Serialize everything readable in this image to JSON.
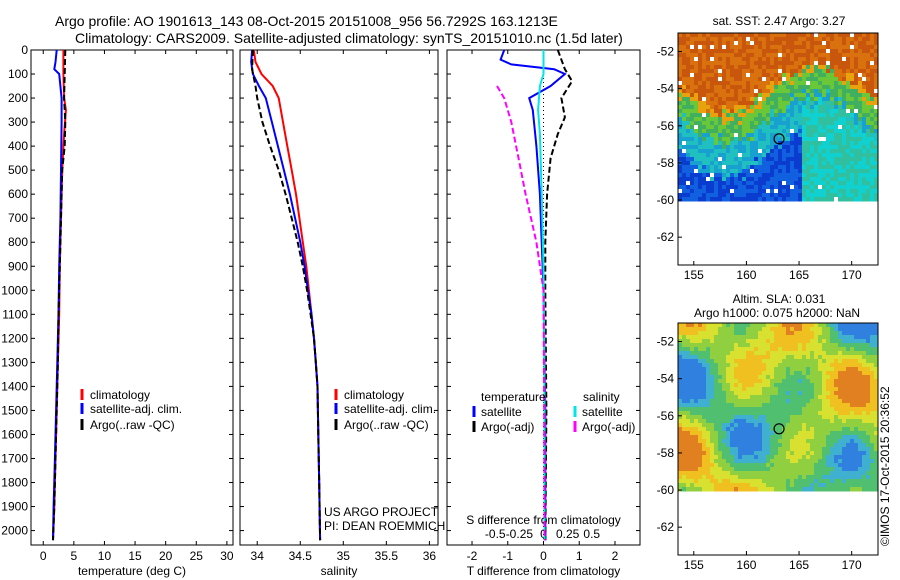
{
  "header": {
    "line1": "Argo profile: AO 1901613_143 08-Oct-2015 20151008_956 56.7292S 163.1213E",
    "line2": "Climatology: CARS2009. Satellite-adjusted climatology: synTS_20151010.nc (1.5d later)"
  },
  "colors": {
    "climatology": "#ff0000",
    "satellite": "#0000ff",
    "argo": "#000000",
    "satellite_salinity": "#00e5e5",
    "argo_salinity_adj": "#ff00ff"
  },
  "watermark": "©IMOS 17-Oct-2015 20:36:52",
  "chart_data": [
    {
      "type": "line",
      "xlabel": "temperature (deg C)",
      "ylabel": "",
      "xlim": [
        -2,
        31
      ],
      "ylim": [
        2060,
        0
      ],
      "x_ticks": [
        0,
        5,
        10,
        15,
        20,
        25,
        30
      ],
      "y_ticks": [
        0,
        100,
        200,
        300,
        400,
        500,
        600,
        700,
        800,
        900,
        1000,
        1100,
        1200,
        1300,
        1400,
        1500,
        1600,
        1700,
        1800,
        1900,
        2000
      ],
      "legend_position": "lower-middle",
      "series": [
        {
          "name": "climatology",
          "color": "#ff0000",
          "dash": false,
          "points": [
            [
              3.3,
              0
            ],
            [
              3.3,
              100
            ],
            [
              3.4,
              200
            ],
            [
              3.7,
              250
            ],
            [
              3.4,
              350
            ],
            [
              3.1,
              500
            ],
            [
              2.9,
              700
            ],
            [
              2.7,
              900
            ],
            [
              2.6,
              1100
            ],
            [
              2.4,
              1300
            ],
            [
              2.2,
              1500
            ],
            [
              2.0,
              1700
            ],
            [
              1.8,
              1900
            ],
            [
              1.6,
              2040
            ]
          ]
        },
        {
          "name": "satellite-adj. clim.",
          "color": "#0000ff",
          "dash": false,
          "points": [
            [
              2.2,
              0
            ],
            [
              2.0,
              50
            ],
            [
              1.8,
              80
            ],
            [
              2.6,
              100
            ],
            [
              3.0,
              200
            ],
            [
              3.0,
              300
            ],
            [
              2.9,
              500
            ],
            [
              2.8,
              700
            ],
            [
              2.6,
              900
            ],
            [
              2.5,
              1100
            ],
            [
              2.3,
              1300
            ],
            [
              2.1,
              1500
            ],
            [
              1.9,
              1700
            ],
            [
              1.7,
              1900
            ],
            [
              1.6,
              2040
            ]
          ]
        },
        {
          "name": "Argo(..raw -QC)",
          "color": "#000000",
          "dash": true,
          "points": [
            [
              3.6,
              0
            ],
            [
              3.5,
              100
            ],
            [
              3.4,
              200
            ],
            [
              3.6,
              300
            ],
            [
              3.5,
              400
            ],
            [
              3.1,
              500
            ],
            [
              2.9,
              700
            ],
            [
              2.7,
              900
            ],
            [
              2.5,
              1100
            ],
            [
              2.4,
              1300
            ],
            [
              2.2,
              1500
            ],
            [
              2.0,
              1700
            ],
            [
              1.8,
              1900
            ],
            [
              1.6,
              2040
            ]
          ]
        }
      ]
    },
    {
      "type": "line",
      "xlabel": "salinity",
      "ylabel": "",
      "xlim": [
        33.8,
        36.1
      ],
      "ylim": [
        2060,
        0
      ],
      "x_ticks": [
        34,
        34.5,
        35,
        35.5,
        36
      ],
      "legend_position": "lower-right",
      "annotation": [
        "US ARGO PROJECT",
        "PI: DEAN ROEMMICH"
      ],
      "series": [
        {
          "name": "climatology",
          "color": "#ff0000",
          "dash": false,
          "points": [
            [
              33.96,
              0
            ],
            [
              33.98,
              50
            ],
            [
              34.05,
              100
            ],
            [
              34.18,
              150
            ],
            [
              34.25,
              200
            ],
            [
              34.3,
              300
            ],
            [
              34.35,
              400
            ],
            [
              34.4,
              500
            ],
            [
              34.45,
              600
            ],
            [
              34.49,
              700
            ],
            [
              34.53,
              800
            ],
            [
              34.57,
              900
            ],
            [
              34.6,
              1000
            ],
            [
              34.63,
              1100
            ],
            [
              34.66,
              1200
            ],
            [
              34.68,
              1300
            ],
            [
              34.7,
              1400
            ],
            [
              34.71,
              1600
            ],
            [
              34.72,
              1800
            ],
            [
              34.73,
              2040
            ]
          ]
        },
        {
          "name": "satellite-adj. clim.",
          "color": "#0000ff",
          "dash": false,
          "points": [
            [
              33.94,
              0
            ],
            [
              33.93,
              50
            ],
            [
              33.95,
              100
            ],
            [
              34.02,
              150
            ],
            [
              34.1,
              200
            ],
            [
              34.17,
              300
            ],
            [
              34.24,
              400
            ],
            [
              34.31,
              500
            ],
            [
              34.38,
              600
            ],
            [
              34.44,
              700
            ],
            [
              34.5,
              800
            ],
            [
              34.55,
              900
            ],
            [
              34.59,
              1000
            ],
            [
              34.63,
              1100
            ],
            [
              34.66,
              1200
            ],
            [
              34.68,
              1300
            ],
            [
              34.7,
              1400
            ],
            [
              34.71,
              1600
            ],
            [
              34.72,
              1800
            ],
            [
              34.73,
              2040
            ]
          ]
        },
        {
          "name": "Argo(..raw -QC)",
          "color": "#000000",
          "dash": true,
          "points": [
            [
              33.95,
              0
            ],
            [
              33.94,
              80
            ],
            [
              33.98,
              150
            ],
            [
              34.0,
              200
            ],
            [
              34.06,
              300
            ],
            [
              34.15,
              400
            ],
            [
              34.25,
              500
            ],
            [
              34.33,
              600
            ],
            [
              34.4,
              700
            ],
            [
              34.47,
              800
            ],
            [
              34.53,
              900
            ],
            [
              34.58,
              1000
            ],
            [
              34.62,
              1100
            ],
            [
              34.66,
              1200
            ],
            [
              34.68,
              1300
            ],
            [
              34.7,
              1400
            ],
            [
              34.71,
              1600
            ],
            [
              34.72,
              1800
            ],
            [
              34.73,
              2040
            ]
          ]
        }
      ]
    },
    {
      "type": "line",
      "xlabel": "T difference from climatology",
      "title": "S difference from climatology",
      "xlim": [
        -2.7,
        2.7
      ],
      "ylim": [
        2060,
        0
      ],
      "x_ticks_bottom": [
        -2,
        -1,
        0,
        1,
        2
      ],
      "x_ticks_s": [
        -0.5,
        -0.25,
        0,
        0.25,
        0.5
      ],
      "legend_left_title": "temperature",
      "legend_right_title": "salinity",
      "series": [
        {
          "name": "satellite",
          "group": "temperature",
          "color": "#0000ff",
          "dash": false,
          "points": [
            [
              -1.1,
              0
            ],
            [
              -1.2,
              40
            ],
            [
              -0.9,
              60
            ],
            [
              0.3,
              80
            ],
            [
              0.6,
              100
            ],
            [
              0.2,
              150
            ],
            [
              -0.4,
              200
            ],
            [
              -0.3,
              250
            ],
            [
              -0.2,
              400
            ],
            [
              -0.1,
              600
            ],
            [
              -0.05,
              800
            ],
            [
              0,
              1000
            ],
            [
              0.05,
              1500
            ],
            [
              0.05,
              2040
            ]
          ]
        },
        {
          "name": "Argo(-adj)",
          "group": "temperature",
          "color": "#000000",
          "dash": true,
          "points": [
            [
              0.4,
              0
            ],
            [
              0.6,
              80
            ],
            [
              0.8,
              130
            ],
            [
              0.5,
              200
            ],
            [
              0.6,
              280
            ],
            [
              0.4,
              350
            ],
            [
              0.2,
              450
            ],
            [
              0.1,
              600
            ],
            [
              0.05,
              800
            ],
            [
              0.05,
              1000
            ],
            [
              0.08,
              1500
            ],
            [
              0.05,
              2040
            ]
          ]
        },
        {
          "name": "satellite",
          "group": "salinity",
          "color": "#00e5e5",
          "dash": false,
          "points": [
            [
              0,
              0
            ],
            [
              0,
              100
            ],
            [
              -0.1,
              150
            ],
            [
              -0.15,
              250
            ],
            [
              -0.1,
              350
            ],
            [
              -0.05,
              600
            ],
            [
              0,
              900
            ],
            [
              0.02,
              1200
            ],
            [
              0.03,
              1500
            ],
            [
              0.03,
              2040
            ]
          ]
        },
        {
          "name": "Argo(-adj)",
          "group": "salinity",
          "color": "#ff00ff",
          "dash": true,
          "points": [
            [
              -1.3,
              150
            ],
            [
              -1.1,
              200
            ],
            [
              -0.9,
              300
            ],
            [
              -0.7,
              450
            ],
            [
              -0.5,
              600
            ],
            [
              -0.2,
              800
            ],
            [
              0,
              1000
            ],
            [
              0.02,
              1500
            ],
            [
              0.03,
              2040
            ]
          ]
        }
      ]
    },
    {
      "type": "heatmap",
      "title": "sat. SST: 2.47 Argo: 3.27",
      "xlim": [
        153.5,
        172.5
      ],
      "ylim": [
        -63.5,
        -51
      ],
      "x_ticks": [
        155,
        160,
        165,
        170
      ],
      "y_ticks": [
        -52,
        -54,
        -56,
        -58,
        -60,
        -62
      ],
      "marker": {
        "lon": 163.1,
        "lat": -56.7
      }
    },
    {
      "type": "heatmap",
      "title": "Altim. SLA: 0.031",
      "subtitle": "Argo h1000: 0.075 h2000: NaN",
      "xlim": [
        153.5,
        172.5
      ],
      "ylim": [
        -63.5,
        -51
      ],
      "x_ticks": [
        155,
        160,
        165,
        170
      ],
      "y_ticks": [
        -52,
        -54,
        -56,
        -58,
        -60,
        -62
      ],
      "marker": {
        "lon": 163.1,
        "lat": -56.7
      }
    }
  ]
}
